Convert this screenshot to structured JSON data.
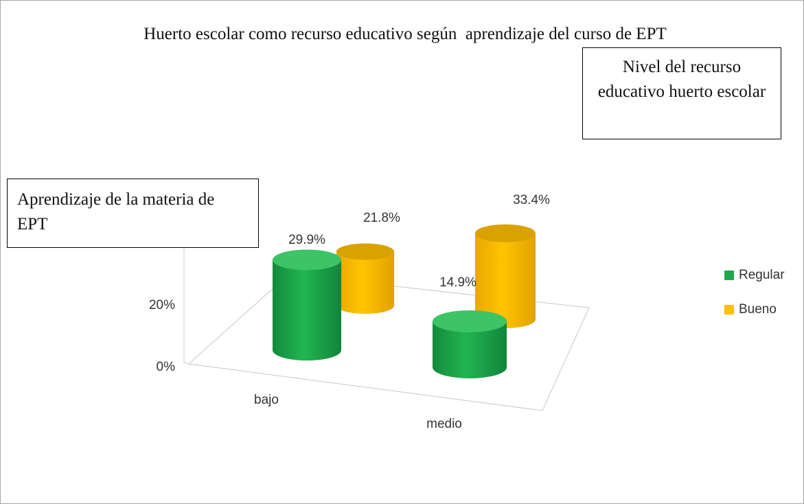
{
  "chart_data": {
    "type": "bar3d",
    "title": "Huerto escolar como recurso educativo según  aprendizaje del curso de EPT",
    "annotations": [
      "Nivel del recurso educativo huerto escolar",
      "Aprendizaje de la materia de EPT"
    ],
    "categories": [
      "bajo",
      "medio"
    ],
    "series": [
      {
        "name": "Regular",
        "color": "#1ea84a",
        "values": [
          29.9,
          14.9
        ],
        "value_labels": [
          "29.9%",
          "14.9%"
        ]
      },
      {
        "name": "Bueno",
        "color": "#ffc000",
        "values": [
          21.8,
          33.4
        ],
        "value_labels": [
          "21.8%",
          "33.4%"
        ]
      }
    ],
    "ylim": [
      0,
      40
    ],
    "yticks": [
      {
        "value": 0,
        "label": "0%"
      },
      {
        "value": 20,
        "label": "20%"
      }
    ],
    "legend": "right"
  }
}
